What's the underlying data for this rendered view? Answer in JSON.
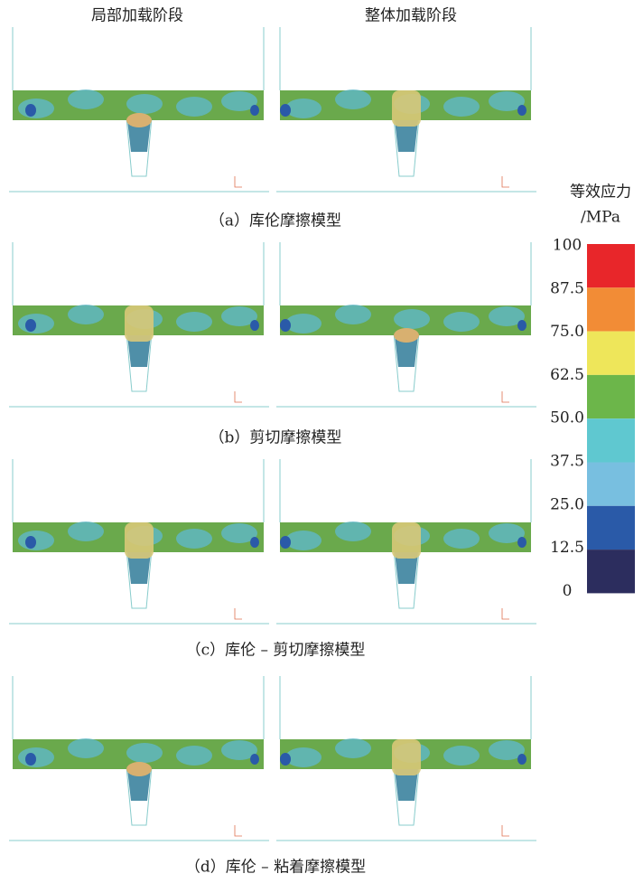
{
  "headers": [
    "局部加载阶段",
    "整体加载阶段"
  ],
  "captions": [
    "（a）库伦摩擦模型",
    "（b）剪切摩擦模型",
    "（c）库伦 – 剪切摩擦模型",
    "（d）库伦 – 粘着摩擦模型"
  ],
  "legend": {
    "title": [
      "等效应力",
      "/MPa"
    ],
    "levels": [
      "100",
      "87.5",
      "75.0",
      "62.5",
      "50.0",
      "37.5",
      "25.0",
      "12.5",
      "0"
    ],
    "colors": [
      "#e8262a",
      "#f28c36",
      "#eee65a",
      "#6cb64a",
      "#5fc8d0",
      "#78bfe0",
      "#2a5aa8",
      "#2c2d5e"
    ]
  }
}
